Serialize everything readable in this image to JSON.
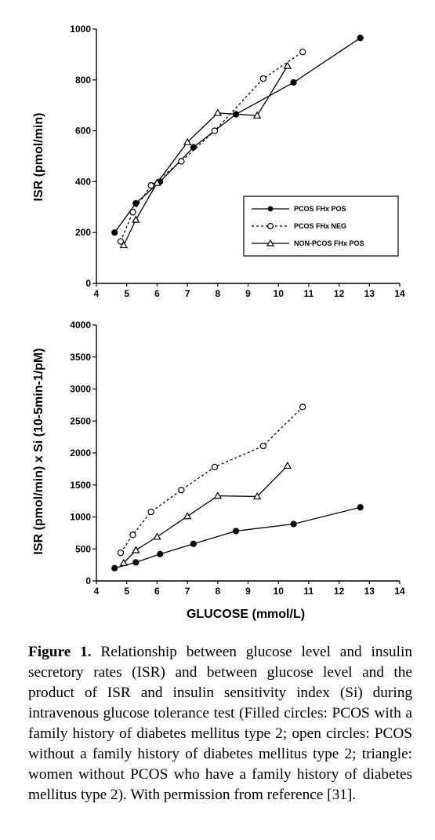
{
  "chart_data": [
    {
      "type": "line",
      "ylabel": "ISR (pmol/min)",
      "xlabel": "",
      "xlim": [
        4,
        14
      ],
      "ylim": [
        0,
        1000
      ],
      "xticks": [
        "4",
        "5",
        "6",
        "7",
        "8",
        "9",
        "10",
        "11",
        "12",
        "13",
        "14"
      ],
      "yticks": [
        "0",
        "200",
        "400",
        "600",
        "800",
        "1000"
      ],
      "legend_position": "bottom-right",
      "series": [
        {
          "name": "PCOS FHx POS",
          "marker": "filled-circle",
          "line": "solid",
          "x": [
            4.6,
            5.3,
            6.1,
            7.2,
            8.6,
            10.5,
            12.7
          ],
          "y": [
            200,
            315,
            400,
            535,
            665,
            790,
            965
          ]
        },
        {
          "name": "PCOS FHx NEG",
          "marker": "open-circle",
          "line": "dashed",
          "x": [
            4.8,
            5.2,
            5.8,
            6.8,
            7.9,
            9.5,
            10.8
          ],
          "y": [
            165,
            280,
            385,
            480,
            600,
            805,
            910
          ]
        },
        {
          "name": "NON-PCOS FHx POS",
          "marker": "triangle",
          "line": "solid",
          "x": [
            4.9,
            5.3,
            6.0,
            7.0,
            8.0,
            9.3,
            10.3
          ],
          "y": [
            150,
            250,
            395,
            555,
            670,
            660,
            855
          ]
        }
      ]
    },
    {
      "type": "line",
      "ylabel": "ISR (pmol/min) x Si (10-5min-1/pM)",
      "xlabel": "GLUCOSE (mmol/L)",
      "xlim": [
        4,
        14
      ],
      "ylim": [
        0,
        4000
      ],
      "xticks": [
        "4",
        "5",
        "6",
        "7",
        "8",
        "9",
        "10",
        "11",
        "12",
        "13",
        "14"
      ],
      "yticks": [
        "0",
        "500",
        "1000",
        "1500",
        "2000",
        "2500",
        "3000",
        "3500",
        "4000"
      ],
      "series": [
        {
          "name": "PCOS FHx POS",
          "marker": "filled-circle",
          "line": "solid",
          "x": [
            4.6,
            5.3,
            6.1,
            7.2,
            8.6,
            10.5,
            12.7
          ],
          "y": [
            200,
            290,
            420,
            580,
            780,
            890,
            1150
          ]
        },
        {
          "name": "PCOS FHx NEG",
          "marker": "open-circle",
          "line": "dashed",
          "x": [
            4.8,
            5.2,
            5.8,
            6.8,
            7.9,
            9.5,
            10.8
          ],
          "y": [
            440,
            720,
            1080,
            1420,
            1780,
            2110,
            2720
          ]
        },
        {
          "name": "NON-PCOS FHx POS",
          "marker": "triangle",
          "line": "solid",
          "x": [
            4.9,
            5.3,
            6.0,
            7.0,
            8.0,
            9.3,
            10.3
          ],
          "y": [
            280,
            480,
            690,
            1010,
            1330,
            1320,
            1800
          ]
        }
      ]
    }
  ],
  "caption": {
    "label": "Figure 1.",
    "text": " Relationship between glucose level and insulin secretory rates (ISR) and between glucose level and the product of ISR and insulin sensitivity index (Si) during intravenous glucose tolerance test (Filled circles: PCOS with a family history of diabetes mellitus type 2; open circles: PCOS without a family history of diabetes mellitus type 2; triangle: women without PCOS who have a family history of diabetes mellitus type 2). With permission from reference [31]."
  }
}
